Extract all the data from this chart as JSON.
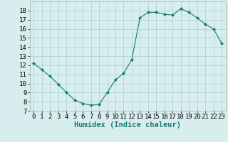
{
  "x": [
    0,
    1,
    2,
    3,
    4,
    5,
    6,
    7,
    8,
    9,
    10,
    11,
    12,
    13,
    14,
    15,
    16,
    17,
    18,
    19,
    20,
    21,
    22,
    23
  ],
  "y": [
    12.2,
    11.5,
    10.8,
    9.9,
    9.0,
    8.2,
    7.8,
    7.6,
    7.7,
    9.0,
    10.4,
    11.1,
    12.6,
    17.2,
    17.8,
    17.8,
    17.6,
    17.5,
    18.2,
    17.8,
    17.2,
    16.5,
    16.0,
    14.4
  ],
  "line_color": "#1a7a6e",
  "marker": "D",
  "marker_size": 2,
  "bg_color": "#d8eeee",
  "grid_color": "#b0d4d4",
  "xlabel": "Humidex (Indice chaleur)",
  "ylim": [
    7,
    19
  ],
  "xlim": [
    -0.5,
    23.5
  ],
  "yticks": [
    7,
    8,
    9,
    10,
    11,
    12,
    13,
    14,
    15,
    16,
    17,
    18
  ],
  "xticks": [
    0,
    1,
    2,
    3,
    4,
    5,
    6,
    7,
    8,
    9,
    10,
    11,
    12,
    13,
    14,
    15,
    16,
    17,
    18,
    19,
    20,
    21,
    22,
    23
  ],
  "font_size": 6.5,
  "label_font_size": 7.5
}
